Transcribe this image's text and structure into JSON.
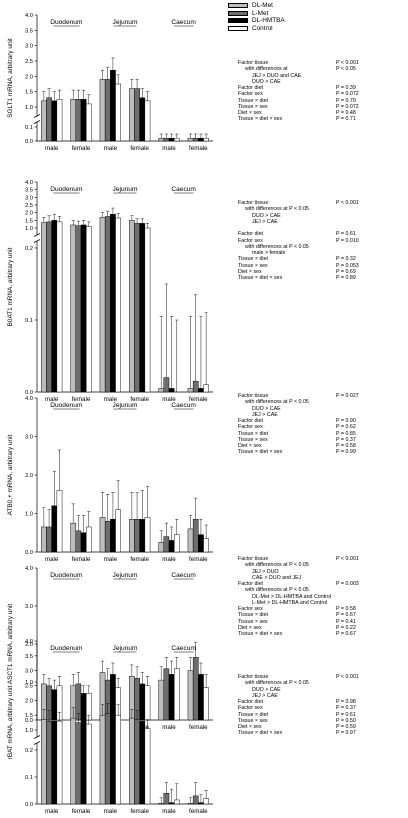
{
  "legend": [
    {
      "name": "DL-Met",
      "color": "#bdbdbd"
    },
    {
      "name": "L-Met",
      "color": "#6e6e6e"
    },
    {
      "name": "DL-HMTBA",
      "color": "#000000"
    },
    {
      "name": "Control",
      "color": "#ffffff"
    }
  ],
  "chart_data": [
    {
      "type": "bar",
      "ylabel": "SGLT1 mRNA, arbitrary unit",
      "tissues": [
        "Duodenum",
        "Jejunum",
        "Caecum"
      ],
      "sexes": [
        "male",
        "female"
      ],
      "series": [
        "DL-Met",
        "L-Met",
        "DL-HMTBA",
        "Control"
      ],
      "broken_axis": true,
      "lower_ticks": [
        "0.0",
        "0.1"
      ],
      "upper_ticks": [
        "1.0",
        "1.5",
        "2.0",
        "2.5",
        "3.0",
        "3.5",
        "4.0"
      ],
      "values": [
        [
          [
            1.2,
            1.3,
            1.2,
            1.25
          ],
          [
            1.25,
            1.25,
            1.25,
            1.1
          ]
        ],
        [
          [
            1.9,
            1.9,
            2.2,
            1.75
          ],
          [
            1.6,
            1.6,
            1.3,
            1.2
          ]
        ],
        [
          [
            0.02,
            0.02,
            0.02,
            0.02
          ],
          [
            0.02,
            0.02,
            0.02,
            0.02
          ]
        ]
      ],
      "errors": [
        [
          [
            0.3,
            0.3,
            0.3,
            0.3
          ],
          [
            0.3,
            0.3,
            0.3,
            0.3
          ]
        ],
        [
          [
            0.3,
            0.4,
            0.4,
            0.3
          ],
          [
            0.3,
            0.3,
            0.3,
            0.3
          ]
        ],
        [
          [
            0.03,
            0.03,
            0.03,
            0.03
          ],
          [
            0.03,
            0.03,
            0.03,
            0.03
          ]
        ]
      ],
      "stats": [
        {
          "label": "Factor tissue",
          "value": "P < 0.001",
          "indent": 0
        },
        {
          "label": "with differences at",
          "value": "P < 0.05",
          "indent": 1
        },
        {
          "label": "JEJ  > DUO and CAE",
          "value": "",
          "indent": 2
        },
        {
          "label": "DUO > CAE",
          "value": "",
          "indent": 2
        },
        {
          "label": "Factor diet",
          "value": "P = 0.39",
          "indent": 0
        },
        {
          "label": "Factor sex",
          "value": "P = 0.072",
          "indent": 0
        },
        {
          "label": "Tissue × diet",
          "value": "P = 0.70",
          "indent": 0
        },
        {
          "label": "Tissue × sex",
          "value": "P = 0.072",
          "indent": 0
        },
        {
          "label": "Diet × sex",
          "value": "P = 0.48",
          "indent": 0
        },
        {
          "label": "Tissue × diet × sex",
          "value": "P = 0.71",
          "indent": 0
        }
      ]
    },
    {
      "type": "bar",
      "ylabel": "B0AT1 mRNA, arbitrary unit",
      "tissues": [
        "Duodenum",
        "Jejunum",
        "Caecum"
      ],
      "sexes": [
        "male",
        "female"
      ],
      "series": [
        "DL-Met",
        "L-Met",
        "DL-HMTBA",
        "Control"
      ],
      "broken_axis": true,
      "lower_ticks": [
        "0.0",
        "0.1",
        "0.2"
      ],
      "upper_ticks": [
        "1.0",
        "1.5",
        "2.0",
        "2.5",
        "3.0",
        "3.5",
        "4.0"
      ],
      "values": [
        [
          [
            1.35,
            1.4,
            1.5,
            1.4
          ],
          [
            1.2,
            1.15,
            1.2,
            1.1
          ]
        ],
        [
          [
            1.7,
            1.75,
            1.9,
            1.65
          ],
          [
            1.5,
            1.3,
            1.3,
            1.0
          ]
        ],
        [
          [
            0.005,
            0.02,
            0.005,
            0.0
          ],
          [
            0.005,
            0.015,
            0.005,
            0.01
          ]
        ]
      ],
      "errors": [
        [
          [
            0.35,
            0.4,
            0.4,
            0.35
          ],
          [
            0.3,
            0.3,
            0.3,
            0.3
          ]
        ],
        [
          [
            0.3,
            0.35,
            0.4,
            0.3
          ],
          [
            0.3,
            0.3,
            0.3,
            0.3
          ]
        ],
        [
          [
            0.1,
            0.13,
            0.1,
            0.1
          ],
          [
            0.1,
            0.12,
            0.1,
            0.1
          ]
        ]
      ],
      "stats": [
        {
          "label": "Factor tissue",
          "value": "P < 0.001",
          "indent": 0
        },
        {
          "label": "with differences at P < 0.05",
          "value": "",
          "indent": 1
        },
        {
          "label": "DUO > CAE",
          "value": "",
          "indent": 2
        },
        {
          "label": "JEJ  > CAE",
          "value": "",
          "indent": 2
        },
        {
          "label": "",
          "value": "",
          "indent": 0
        },
        {
          "label": "Factor diet",
          "value": "P = 0.61",
          "indent": 0
        },
        {
          "label": "Factor sex",
          "value": "P = 0.010",
          "indent": 0
        },
        {
          "label": "with differences at P < 0.05",
          "value": "",
          "indent": 1
        },
        {
          "label": "male > female",
          "value": "",
          "indent": 2
        },
        {
          "label": "Tissue × diet",
          "value": "P = 0.32",
          "indent": 0
        },
        {
          "label": "Tissue × sex",
          "value": "P = 0.053",
          "indent": 0
        },
        {
          "label": "Diet × sex",
          "value": "P = 0.69",
          "indent": 0
        },
        {
          "label": "Tissue × diet × sex",
          "value": "P = 0.89",
          "indent": 0
        }
      ]
    },
    {
      "type": "bar",
      "ylabel": "ATB0,+ mRNA, arbitrary unit",
      "tissues": [
        "Duodenum",
        "Jejunum",
        "Caecum"
      ],
      "sexes": [
        "male",
        "female"
      ],
      "series": [
        "DL-Met",
        "L-Met",
        "DL-HMTBA",
        "Control"
      ],
      "broken_axis": false,
      "yticks": [
        "0.0",
        "1.0",
        "2.0",
        "3.0",
        "4.0"
      ],
      "ylim": [
        0,
        4
      ],
      "values": [
        [
          [
            0.65,
            0.65,
            1.2,
            1.6
          ],
          [
            0.75,
            0.55,
            0.5,
            0.65
          ]
        ],
        [
          [
            0.9,
            0.8,
            0.85,
            1.1
          ],
          [
            0.85,
            0.85,
            0.85,
            0.9
          ]
        ],
        [
          [
            0.25,
            0.4,
            0.3,
            0.45
          ],
          [
            0.6,
            0.85,
            0.45,
            0.35
          ]
        ]
      ],
      "errors": [
        [
          [
            0.5,
            0.45,
            0.9,
            1.05
          ],
          [
            0.5,
            0.4,
            0.45,
            0.4
          ]
        ],
        [
          [
            0.65,
            0.7,
            0.7,
            0.75
          ],
          [
            0.7,
            0.7,
            0.75,
            0.8
          ]
        ],
        [
          [
            0.3,
            0.35,
            0.35,
            0.4
          ],
          [
            0.35,
            0.55,
            0.4,
            0.35
          ]
        ]
      ],
      "stats": [
        {
          "label": "Factor tissue",
          "value": "P = 0.027",
          "indent": 0
        },
        {
          "label": "with differences at P < 0.05",
          "value": "",
          "indent": 1
        },
        {
          "label": "DUO > CAE",
          "value": "",
          "indent": 2
        },
        {
          "label": "JEJ  > CAE",
          "value": "",
          "indent": 2
        },
        {
          "label": "Factor diet",
          "value": "P = 0.90",
          "indent": 0
        },
        {
          "label": "Factor sex",
          "value": "P = 0.62",
          "indent": 0
        },
        {
          "label": "Tissue × diet",
          "value": "P = 0.85",
          "indent": 0
        },
        {
          "label": "Tissue × sex",
          "value": "P = 0.37",
          "indent": 0
        },
        {
          "label": "Diet × sex",
          "value": "P = 0.58",
          "indent": 0
        },
        {
          "label": "Tissue × diet × sex",
          "value": "P = 0.99",
          "indent": 0
        }
      ]
    },
    {
      "type": "bar",
      "ylabel": "ASCT1 mRNA, arbitrary unit",
      "tissues": [
        "Duodenum",
        "Jejunum",
        "Caecum"
      ],
      "sexes": [
        "male",
        "female"
      ],
      "series": [
        "DL-Met",
        "L-Met",
        "DL-HMTBA",
        "Control"
      ],
      "broken_axis": false,
      "yticks": [
        "0.0",
        "1.0",
        "2.0",
        "3.0",
        "4.0"
      ],
      "ylim": [
        0,
        4
      ],
      "values": [
        [
          [
            0.95,
            0.9,
            0.8,
            0.9
          ],
          [
            0.9,
            0.95,
            0.7,
            0.7
          ]
        ],
        [
          [
            1.25,
            1.05,
            1.2,
            0.85
          ],
          [
            1.15,
            1.1,
            0.95,
            0.9
          ]
        ],
        [
          [
            1.05,
            1.35,
            1.2,
            1.35
          ],
          [
            1.3,
            1.65,
            1.2,
            0.85
          ]
        ]
      ],
      "errors": [
        [
          [
            0.25,
            0.2,
            0.25,
            0.25
          ],
          [
            0.3,
            0.3,
            0.2,
            0.2
          ]
        ],
        [
          [
            0.3,
            0.3,
            0.3,
            0.25
          ],
          [
            0.3,
            0.3,
            0.3,
            0.25
          ]
        ],
        [
          [
            0.35,
            0.3,
            0.35,
            0.3
          ],
          [
            0.35,
            0.4,
            0.3,
            0.35
          ]
        ]
      ],
      "stats": [
        {
          "label": "Factor tissue",
          "value": "P < 0.001",
          "indent": 0
        },
        {
          "label": "with differences at P < 0.05",
          "value": "",
          "indent": 1
        },
        {
          "label": "JEJ > DUO",
          "value": "",
          "indent": 2
        },
        {
          "label": "CAE > DUO and JEJ",
          "value": "",
          "indent": 2
        },
        {
          "label": "Factor diet",
          "value": "P = 0.003",
          "indent": 0
        },
        {
          "label": "with differences at P < 0.05",
          "value": "",
          "indent": 1
        },
        {
          "label": "DL-Met > DL-HMTBA and Control",
          "value": "",
          "indent": 2
        },
        {
          "label": "L-Met > DL-HMTBA and Control",
          "value": "",
          "indent": 2
        },
        {
          "label": "Factor sex",
          "value": "P = 0.58",
          "indent": 0
        },
        {
          "label": "Tissue × diet",
          "value": "P = 0.67",
          "indent": 0
        },
        {
          "label": "Tissue × sex",
          "value": "P = 0.41",
          "indent": 0
        },
        {
          "label": "Diet × sex",
          "value": "P = 0.22",
          "indent": 0
        },
        {
          "label": "Tissue × diet × sex",
          "value": "P = 0.67",
          "indent": 0
        }
      ]
    },
    {
      "type": "bar",
      "ylabel": "rBAT mRNA, arbitrary unit",
      "tissues": [
        "Duodenum",
        "Jejunum",
        "Caecum"
      ],
      "sexes": [
        "male",
        "female"
      ],
      "series": [
        "DL-Met",
        "L-Met",
        "DL-HMTBA",
        "Control"
      ],
      "broken_axis": true,
      "lower_ticks": [
        "0.0",
        "0.1",
        "0.2"
      ],
      "upper_ticks": [
        "1.0",
        "1.5",
        "2.0",
        "2.5",
        "3.0",
        "3.5",
        "4.0"
      ],
      "values": [
        [
          [
            1.35,
            1.3,
            1.3,
            1.3
          ],
          [
            1.4,
            1.25,
            1.4,
            1.2
          ]
        ],
        [
          [
            1.5,
            1.55,
            1.45,
            1.5
          ],
          [
            1.4,
            1.35,
            1.3,
            1.05
          ]
        ],
        [
          [
            0.003,
            0.04,
            0.005,
            0.015
          ],
          [
            0.003,
            0.03,
            0.005,
            0.02
          ]
        ]
      ],
      "errors": [
        [
          [
            0.35,
            0.35,
            0.3,
            0.3
          ],
          [
            0.35,
            0.3,
            0.35,
            0.3
          ]
        ],
        [
          [
            0.35,
            0.35,
            0.3,
            0.35
          ],
          [
            0.3,
            0.3,
            0.3,
            0.3
          ]
        ],
        [
          [
            0.02,
            0.04,
            0.05,
            0.06
          ],
          [
            0.02,
            0.05,
            0.03,
            0.03
          ]
        ]
      ],
      "stats": [
        {
          "label": "Factor tissue",
          "value": "P < 0.001",
          "indent": 0
        },
        {
          "label": "with differences at P < 0.05",
          "value": "",
          "indent": 1
        },
        {
          "label": "DUO > CAE",
          "value": "",
          "indent": 2
        },
        {
          "label": "JEJ  > CAE",
          "value": "",
          "indent": 2
        },
        {
          "label": "Factor diet",
          "value": "P = 0.98",
          "indent": 0
        },
        {
          "label": "Factor sex",
          "value": "P = 0.37",
          "indent": 0
        },
        {
          "label": "Tissue × diet",
          "value": "P = 0.61",
          "indent": 0
        },
        {
          "label": "Tissue × sex",
          "value": "P = 0.50",
          "indent": 0
        },
        {
          "label": "Diet × sex",
          "value": "P = 0.59",
          "indent": 0
        },
        {
          "label": "Tissue × diet × sex",
          "value": "P = 0.97",
          "indent": 0
        }
      ]
    }
  ]
}
